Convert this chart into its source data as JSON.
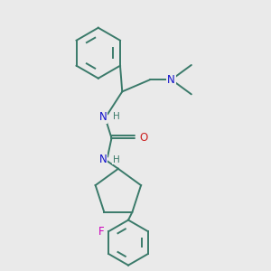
{
  "bg_color": "#eaeaea",
  "bond_color": "#3a7a6a",
  "atom_colors": {
    "N": "#1010cc",
    "O": "#cc2020",
    "F": "#cc00bb",
    "H": "#3a7a6a"
  },
  "lw": 1.4,
  "fontsize": 7.5
}
